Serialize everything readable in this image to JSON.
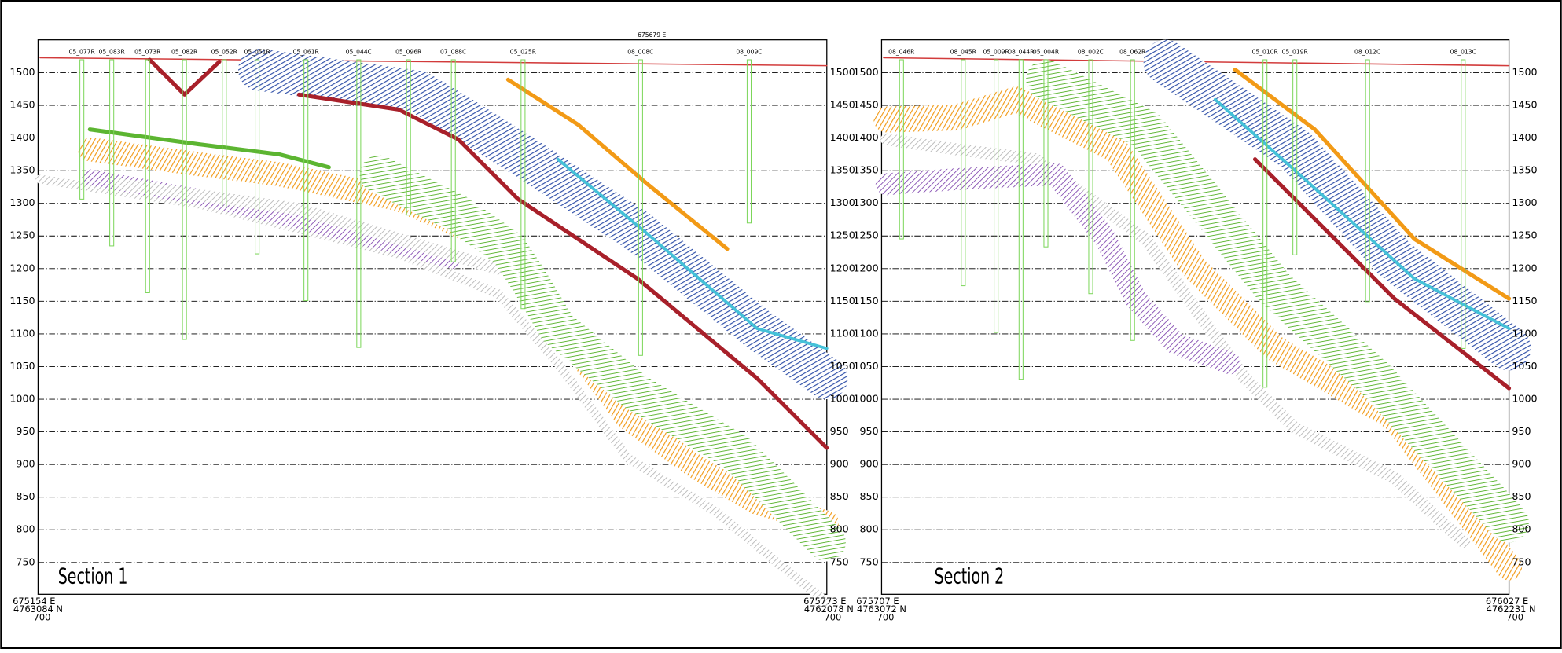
{
  "sections": [
    {
      "title": "Section 1",
      "elevations": [
        1500,
        1450,
        1400,
        1350,
        1300,
        1250,
        1200,
        1150,
        1100,
        1050,
        1000,
        950,
        900,
        850,
        800,
        750
      ],
      "top_marker": "675679 E",
      "corners": {
        "bottom_left": [
          "675154 E",
          "4763084 N",
          "700"
        ],
        "bottom_right": [
          "675773 E",
          "4762078 N",
          "700"
        ]
      },
      "drillholes": [
        "05_077R",
        "05_083R",
        "05_073R",
        "05_082R",
        "05_052R",
        "05_051R",
        "05_061R",
        "05_044C",
        "05_096R",
        "07_088C",
        "05_025R",
        "08_008C",
        "08_009C"
      ]
    },
    {
      "title": "Section 2",
      "elevations": [
        1500,
        1450,
        1400,
        1350,
        1300,
        1250,
        1200,
        1150,
        1100,
        1050,
        1000,
        950,
        900,
        850,
        800,
        750
      ],
      "corners": {
        "bottom_left": [
          "675707 E",
          "4763072 N",
          "700"
        ],
        "bottom_right": [
          "676027 E",
          "4762231 N",
          "700"
        ]
      },
      "drillholes": [
        "08_046R",
        "08_045R",
        "05_009R",
        "08_044R",
        "05_004R",
        "08_002C",
        "08_062R",
        "05_010R",
        "05_019R",
        "08_012C",
        "08_013C"
      ]
    }
  ]
}
